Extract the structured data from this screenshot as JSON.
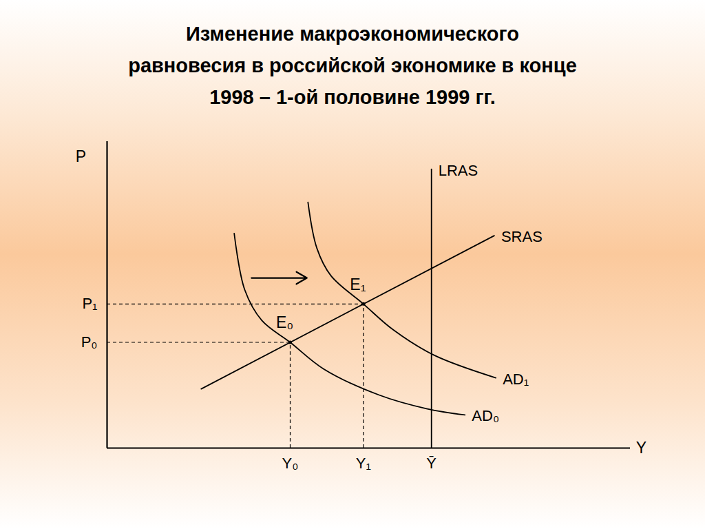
{
  "chart_data": {
    "type": "line",
    "title": "Изменение макроэкономического\nравновесия в российской экономике в конце\n1998 – 1-ой половине 1999 гг.",
    "x_label": "Y",
    "y_label": "P",
    "xlim": [
      0,
      100
    ],
    "ylim": [
      0,
      100
    ],
    "xticks": [
      {
        "value": 35,
        "label": "Y₀"
      },
      {
        "value": 49,
        "label": "Y₁"
      },
      {
        "value": 62,
        "label": "Ȳ"
      }
    ],
    "yticks": [
      {
        "value": 34.5,
        "label": "P₀"
      },
      {
        "value": 47,
        "label": "P₁"
      }
    ],
    "grid": false,
    "color": "#000000",
    "series": [
      {
        "name": "AD₀",
        "x": [
          24.3,
          26.3,
          29.6,
          35,
          41.4,
          52,
          61.2,
          68.4
        ],
        "values": [
          70,
          51.7,
          41.6,
          34.5,
          25.8,
          17.3,
          12.8,
          10.8
        ]
      },
      {
        "name": "AD₁",
        "x": [
          38.4,
          40.1,
          42.8,
          49,
          54.6,
          62.5,
          74.3
        ],
        "values": [
          80.2,
          65.2,
          56.2,
          47,
          38.7,
          30.3,
          22.9
        ]
      },
      {
        "name": "SRAS",
        "x": [
          18,
          74
        ],
        "values": [
          19.3,
          69.3
        ]
      },
      {
        "name": "LRAS",
        "x": [
          62,
          62
        ],
        "values": [
          0,
          91
        ]
      }
    ],
    "points": [
      {
        "label": "E₀",
        "x": 35,
        "y": 34.5
      },
      {
        "label": "E₁",
        "x": 49,
        "y": 47
      }
    ],
    "arrows": [
      {
        "x1": 27.6,
        "y1": 55.5,
        "x2": 38.2,
        "y2": 55.5
      }
    ]
  }
}
